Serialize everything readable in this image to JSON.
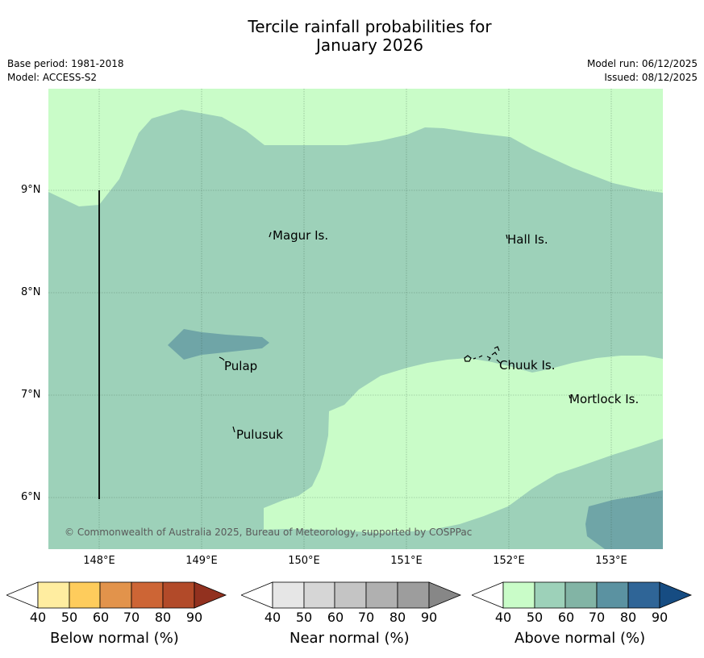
{
  "title_line1": "Tercile rainfall probabilities for",
  "title_line2": "January 2026",
  "base_period": "Base period: 1981-2018",
  "model": "Model: ACCESS-S2",
  "model_run": "Model run: 06/12/2025",
  "issued": "Issued: 08/12/2025",
  "y_ticks": [
    "9°N",
    "8°N",
    "7°N",
    "6°N"
  ],
  "x_ticks": [
    "148°E",
    "149°E",
    "150°E",
    "151°E",
    "152°E",
    "153°E"
  ],
  "places": {
    "magur": "Magur Is.",
    "hall": "Hall Is.",
    "pulap": "Pulap",
    "chuuk": "Chuuk Is.",
    "mortlock": "Mortlock Is.",
    "pulusuk": "Pulusuk"
  },
  "copyright": "© Commonwealth of Australia 2025, Bureau of Meteorology, supported by COSPPac",
  "colorbars": {
    "below": {
      "label": "Below normal (%)",
      "ticks": [
        "40",
        "50",
        "60",
        "70",
        "80",
        "90"
      ],
      "colors": [
        "#ffffff",
        "#ffeda0",
        "#fecc5c",
        "#e2934b",
        "#cd6535",
        "#b24a29",
        "#92311f"
      ]
    },
    "near": {
      "label": "Near normal (%)",
      "ticks": [
        "40",
        "50",
        "60",
        "70",
        "80",
        "90"
      ],
      "colors": [
        "#ffffff",
        "#e6e6e6",
        "#d6d6d6",
        "#c4c4c4",
        "#b0b0b0",
        "#9d9d9d",
        "#878787"
      ]
    },
    "above": {
      "label": "Above normal (%)",
      "ticks": [
        "40",
        "50",
        "60",
        "70",
        "80",
        "90"
      ],
      "colors": [
        "#ffffff",
        "#c9fcc8",
        "#9dd1b9",
        "#82b4a5",
        "#5b92a1",
        "#2f6597",
        "#164c82"
      ]
    }
  },
  "map_colors": {
    "above_40_50": "#c9fcc8",
    "above_50_60": "#9dd1b9",
    "above_60_70": "#6fa5a7"
  }
}
